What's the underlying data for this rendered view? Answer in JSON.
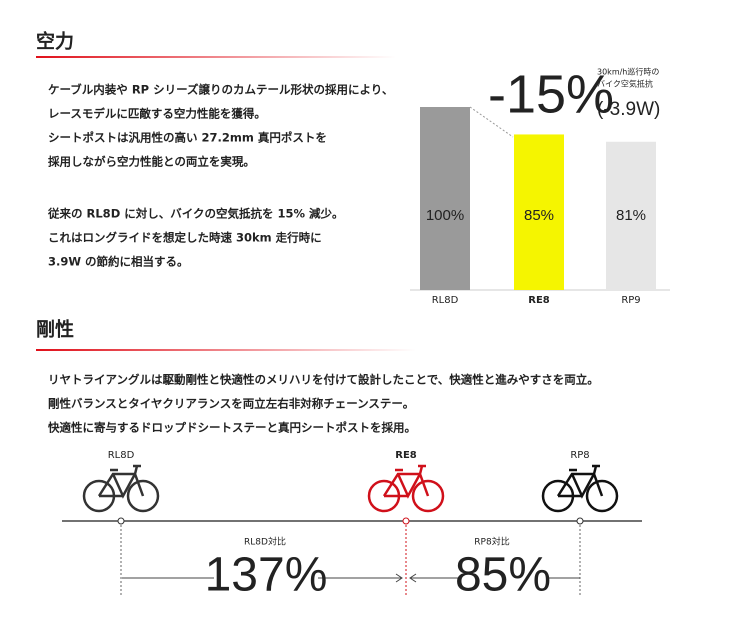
{
  "aero": {
    "heading": "空力",
    "paragraphs": [
      [
        "ケーブル内装や RP シリーズ譲りのカムテール形状の採用により、",
        "レースモデルに匹敵する空力性能を獲得。",
        "シートポストは汎用性の高い 27.2mm 真円ポストを",
        "採用しながら空力性能との両立を実現。"
      ],
      [
        "従来の RL8D に対し、バイクの空気抵抗を 15% 減少。",
        "これはロングライドを想定した時速 30km 走行時に",
        "3.9W の節約に相当する。"
      ]
    ],
    "callout": {
      "delta": "-15%",
      "watts": "(-3.9W)",
      "note": [
        "30km/h巡行時の",
        "バイク空気抵抗"
      ]
    }
  },
  "chart_data": {
    "type": "bar",
    "categories": [
      "RL8D",
      "RE8",
      "RP9"
    ],
    "values": [
      100,
      85,
      81
    ],
    "value_labels": [
      "100%",
      "85%",
      "81%"
    ],
    "colors": [
      "#9a9a9a",
      "#f5f500",
      "#e6e6e6"
    ],
    "ylim": [
      0,
      100
    ]
  },
  "stiffness": {
    "heading": "剛性",
    "lines": [
      "リヤトライアングルは駆動剛性と快適性のメリハリを付けて設計したことで、快適性と進みやすさを両立。",
      "剛性バランスとタイヤクリアランスを両立左右非対称チェーンステー。",
      "快適性に寄与するドロップドシートステーと真円シートポストを採用。"
    ],
    "bikes": [
      "RL8D",
      "RE8",
      "RP8"
    ],
    "comparisons": [
      {
        "label": "RL8D対比",
        "value": "137%"
      },
      {
        "label": "RP8対比",
        "value": "85%"
      }
    ]
  }
}
